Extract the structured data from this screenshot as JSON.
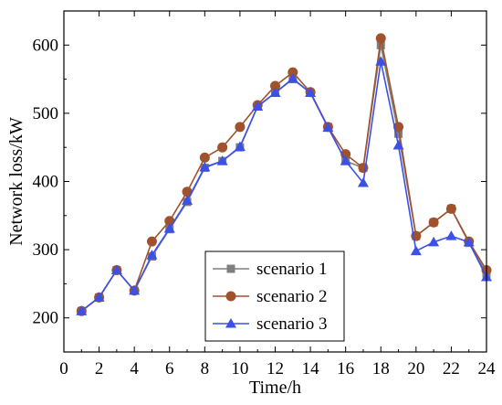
{
  "chart_data": {
    "type": "line",
    "title": "",
    "xlabel": "Time/h",
    "ylabel": "Network loss/kW",
    "xlim": [
      0,
      24
    ],
    "ylim": [
      150,
      650
    ],
    "xticks": [
      0,
      2,
      4,
      6,
      8,
      10,
      12,
      14,
      16,
      18,
      20,
      22,
      24
    ],
    "yticks": [
      200,
      300,
      400,
      500,
      600
    ],
    "grid": false,
    "legend_position": "lower-center",
    "x": [
      1,
      2,
      3,
      4,
      5,
      6,
      7,
      8,
      9,
      10,
      11,
      12,
      13,
      14,
      15,
      16,
      17,
      18,
      19,
      20,
      21,
      22,
      23,
      24
    ],
    "series": [
      {
        "name": "scenario 1",
        "marker": "square",
        "color": "#7f7f7f",
        "values": [
          210,
          230,
          270,
          240,
          290,
          330,
          370,
          420,
          430,
          450,
          510,
          530,
          550,
          530,
          480,
          430,
          420,
          600,
          470,
          320,
          340,
          360,
          310,
          265
        ]
      },
      {
        "name": "scenario 2",
        "marker": "circle",
        "color": "#a0522d",
        "values": [
          210,
          230,
          270,
          240,
          312,
          342,
          385,
          435,
          450,
          480,
          512,
          540,
          560,
          531,
          480,
          440,
          420,
          610,
          480,
          320,
          340,
          360,
          312,
          270
        ]
      },
      {
        "name": "scenario 3",
        "marker": "triangle",
        "color": "#3c50e6",
        "values": [
          210,
          230,
          270,
          240,
          292,
          331,
          372,
          421,
          430,
          451,
          510,
          530,
          551,
          530,
          479,
          430,
          398,
          576,
          453,
          298,
          311,
          320,
          311,
          260
        ]
      }
    ]
  }
}
